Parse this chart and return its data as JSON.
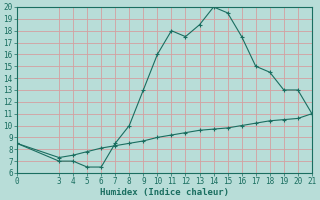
{
  "xlabel": "Humidex (Indice chaleur)",
  "bg_color": "#b8ddd8",
  "grid_color": "#d4a0a0",
  "line_color": "#1a6e60",
  "xlim": [
    0,
    21
  ],
  "ylim": [
    6,
    20
  ],
  "xticks": [
    0,
    3,
    4,
    5,
    6,
    7,
    8,
    9,
    10,
    11,
    12,
    13,
    14,
    15,
    16,
    17,
    18,
    19,
    20,
    21
  ],
  "yticks": [
    6,
    7,
    8,
    9,
    10,
    11,
    12,
    13,
    14,
    15,
    16,
    17,
    18,
    19,
    20
  ],
  "curve1_x": [
    0,
    3,
    4,
    5,
    6,
    7,
    8,
    9,
    10,
    11,
    12,
    13,
    14,
    15,
    16,
    17,
    18,
    19,
    20,
    21
  ],
  "curve1_y": [
    8.5,
    7.0,
    7.0,
    6.5,
    6.5,
    8.5,
    10.0,
    13.0,
    16.0,
    18.0,
    17.5,
    18.5,
    20.0,
    19.5,
    17.5,
    15.0,
    14.5,
    13.0,
    13.0,
    11.0
  ],
  "curve2_x": [
    0,
    3,
    4,
    5,
    6,
    7,
    8,
    9,
    10,
    11,
    12,
    13,
    14,
    15,
    16,
    17,
    18,
    19,
    20,
    21
  ],
  "curve2_y": [
    8.5,
    7.3,
    7.5,
    7.8,
    8.1,
    8.3,
    8.5,
    8.7,
    9.0,
    9.2,
    9.4,
    9.6,
    9.7,
    9.8,
    10.0,
    10.2,
    10.4,
    10.5,
    10.6,
    11.0
  ],
  "xlabel_fontsize": 6.5,
  "tick_fontsize": 5.5
}
